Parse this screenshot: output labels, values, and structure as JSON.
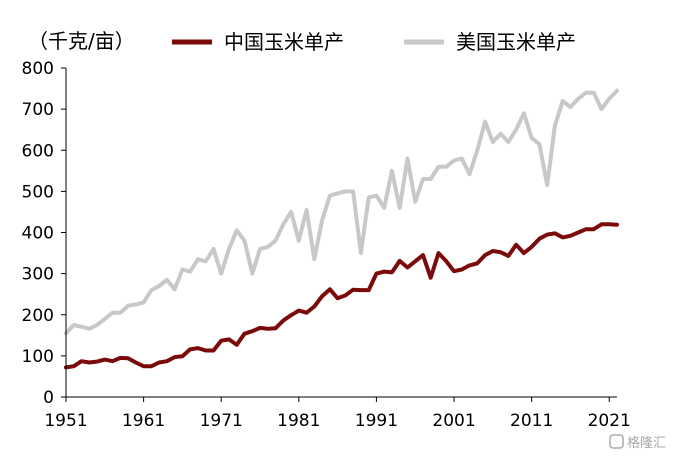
{
  "chart_data": {
    "type": "line",
    "title": "",
    "unit_label": "（千克/亩）",
    "xlabel": "",
    "ylabel": "",
    "xlim": [
      1951,
      2022
    ],
    "ylim": [
      0,
      800
    ],
    "y_ticks": [
      0,
      100,
      200,
      300,
      400,
      500,
      600,
      700,
      800
    ],
    "x_ticks": [
      1951,
      1961,
      1971,
      1981,
      1991,
      2001,
      2011,
      2021
    ],
    "grid": false,
    "legend_position": "top",
    "x": [
      1951,
      1952,
      1953,
      1954,
      1955,
      1956,
      1957,
      1958,
      1959,
      1960,
      1961,
      1962,
      1963,
      1964,
      1965,
      1966,
      1967,
      1968,
      1969,
      1970,
      1971,
      1972,
      1973,
      1974,
      1975,
      1976,
      1977,
      1978,
      1979,
      1980,
      1981,
      1982,
      1983,
      1984,
      1985,
      1986,
      1987,
      1988,
      1989,
      1990,
      1991,
      1992,
      1993,
      1994,
      1995,
      1996,
      1997,
      1998,
      1999,
      2000,
      2001,
      2002,
      2003,
      2004,
      2005,
      2006,
      2007,
      2008,
      2009,
      2010,
      2011,
      2012,
      2013,
      2014,
      2015,
      2016,
      2017,
      2018,
      2019,
      2020,
      2021,
      2022
    ],
    "series": [
      {
        "name": "中国玉米单产",
        "color": "#7b0a0a",
        "values": [
          72,
          75,
          87,
          84,
          86,
          91,
          87,
          95,
          94,
          84,
          75,
          75,
          84,
          87,
          97,
          99,
          116,
          119,
          113,
          113,
          137,
          140,
          127,
          154,
          160,
          168,
          166,
          167,
          186,
          199,
          210,
          205,
          220,
          245,
          262,
          240,
          247,
          261,
          260,
          260,
          300,
          305,
          303,
          331,
          315,
          330,
          345,
          290,
          350,
          330,
          306,
          310,
          320,
          325,
          345,
          355,
          352,
          343,
          370,
          350,
          365,
          385,
          395,
          398,
          388,
          392,
          400,
          408,
          408,
          420,
          420,
          419
        ]
      },
      {
        "name": "美国玉米单产",
        "color": "#c8c8c8",
        "values": [
          155,
          175,
          171,
          166,
          175,
          190,
          205,
          205,
          222,
          225,
          230,
          260,
          270,
          285,
          262,
          310,
          305,
          335,
          330,
          360,
          300,
          360,
          405,
          380,
          300,
          360,
          365,
          380,
          420,
          450,
          380,
          455,
          335,
          430,
          490,
          495,
          500,
          500,
          350,
          485,
          490,
          460,
          550,
          460,
          580,
          475,
          530,
          530,
          560,
          560,
          575,
          580,
          542,
          600,
          670,
          620,
          640,
          620,
          650,
          690,
          630,
          615,
          515,
          660,
          720,
          705,
          725,
          740,
          740,
          700,
          725,
          745
        ]
      }
    ]
  },
  "watermark": {
    "text": "格隆汇"
  }
}
